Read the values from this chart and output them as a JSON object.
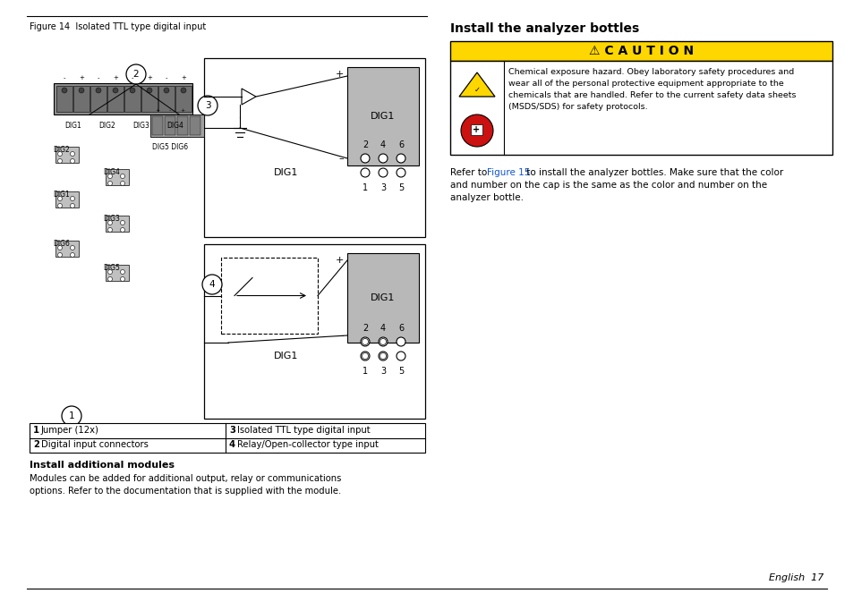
{
  "page_bg": "#ffffff",
  "fig_title": "Figure 14  Isolated TTL type digital input",
  "right_section_title": "Install the analyzer bottles",
  "caution_bg": "#FFD700",
  "caution_text": "⚠ C A U T I O N",
  "caution_line1": "Chemical exposure hazard. Obey laboratory safety procedures and",
  "caution_line2": "wear all of the personal protective equipment appropriate to the",
  "caution_line3": "chemicals that are handled. Refer to the current safety data sheets",
  "caution_line4": "(MSDS/SDS) for safety protocols.",
  "refer_prefix": "Refer to ",
  "refer_link": "Figure 15",
  "refer_line1": " to install the analyzer bottles. Make sure that the color",
  "refer_line2": "and number on the cap is the same as the color and number on the",
  "refer_line3": "analyzer bottle.",
  "table_r1c1_num": "1",
  "table_r1c1_txt": "Jumper (12x)",
  "table_r1c2_num": "3",
  "table_r1c2_txt": "Isolated TTL type digital input",
  "table_r2c1_num": "2",
  "table_r2c1_txt": "Digital input connectors",
  "table_r2c2_num": "4",
  "table_r2c2_txt": "Relay/Open-collector type input",
  "install_title": "Install additional modules",
  "install_line1": "Modules can be added for additional output, relay or communications",
  "install_line2": "options. Refer to the documentation that is supplied with the module.",
  "footer_right": "English  17"
}
